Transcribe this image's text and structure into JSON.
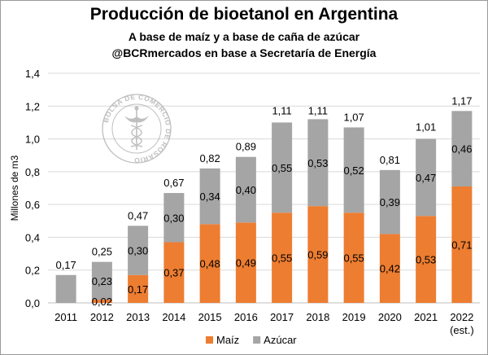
{
  "chart_data": {
    "type": "bar",
    "stacked": true,
    "title": "Producción de bioetanol en Argentina",
    "subtitle": "A base de maíz y a base de caña de azúcar",
    "source": "@BCRmercados en base a Secretaría de Energía",
    "ylabel": "Millones de m3",
    "ylim": [
      0,
      1.4
    ],
    "yticks": [
      "0,0",
      "0,2",
      "0,4",
      "0,6",
      "0,8",
      "1,0",
      "1,2",
      "1,4"
    ],
    "categories": [
      "2011",
      "2012",
      "2013",
      "2014",
      "2015",
      "2016",
      "2017",
      "2018",
      "2019",
      "2020",
      "2021",
      "2022"
    ],
    "category_notes": [
      "",
      "",
      "",
      "",
      "",
      "",
      "",
      "",
      "",
      "",
      "",
      "(est.)"
    ],
    "series": [
      {
        "name": "Maíz",
        "color": "#ed7d31",
        "values": [
          0,
          0.02,
          0.17,
          0.37,
          0.48,
          0.49,
          0.55,
          0.59,
          0.55,
          0.42,
          0.53,
          0.71
        ],
        "labels": [
          "",
          "0,02",
          "0,17",
          "0,37",
          "0,48",
          "0,49",
          "0,55",
          "0,59",
          "0,55",
          "0,42",
          "0,53",
          "0,71"
        ]
      },
      {
        "name": "Azúcar",
        "color": "#a5a5a5",
        "values": [
          0.17,
          0.23,
          0.3,
          0.3,
          0.34,
          0.4,
          0.55,
          0.53,
          0.52,
          0.39,
          0.47,
          0.46
        ],
        "labels": [
          "",
          "0,23",
          "0,30",
          "0,30",
          "0,34",
          "0,40",
          "0,55",
          "0,53",
          "0,52",
          "0,39",
          "0,47",
          "0,46"
        ]
      }
    ],
    "totals": [
      0.17,
      0.25,
      0.47,
      0.67,
      0.82,
      0.89,
      1.11,
      1.11,
      1.07,
      0.81,
      1.01,
      1.17
    ],
    "total_labels": [
      "0,17",
      "0,25",
      "0,47",
      "0,67",
      "0,82",
      "0,89",
      "1,11",
      "1,11",
      "1,07",
      "0,81",
      "1,01",
      "1,17"
    ],
    "legend_position": "bottom",
    "grid": true
  },
  "watermark": {
    "text": "BOLSA DE COMERCIO DE ROSARIO",
    "icon": "caduceus-seal-icon"
  }
}
